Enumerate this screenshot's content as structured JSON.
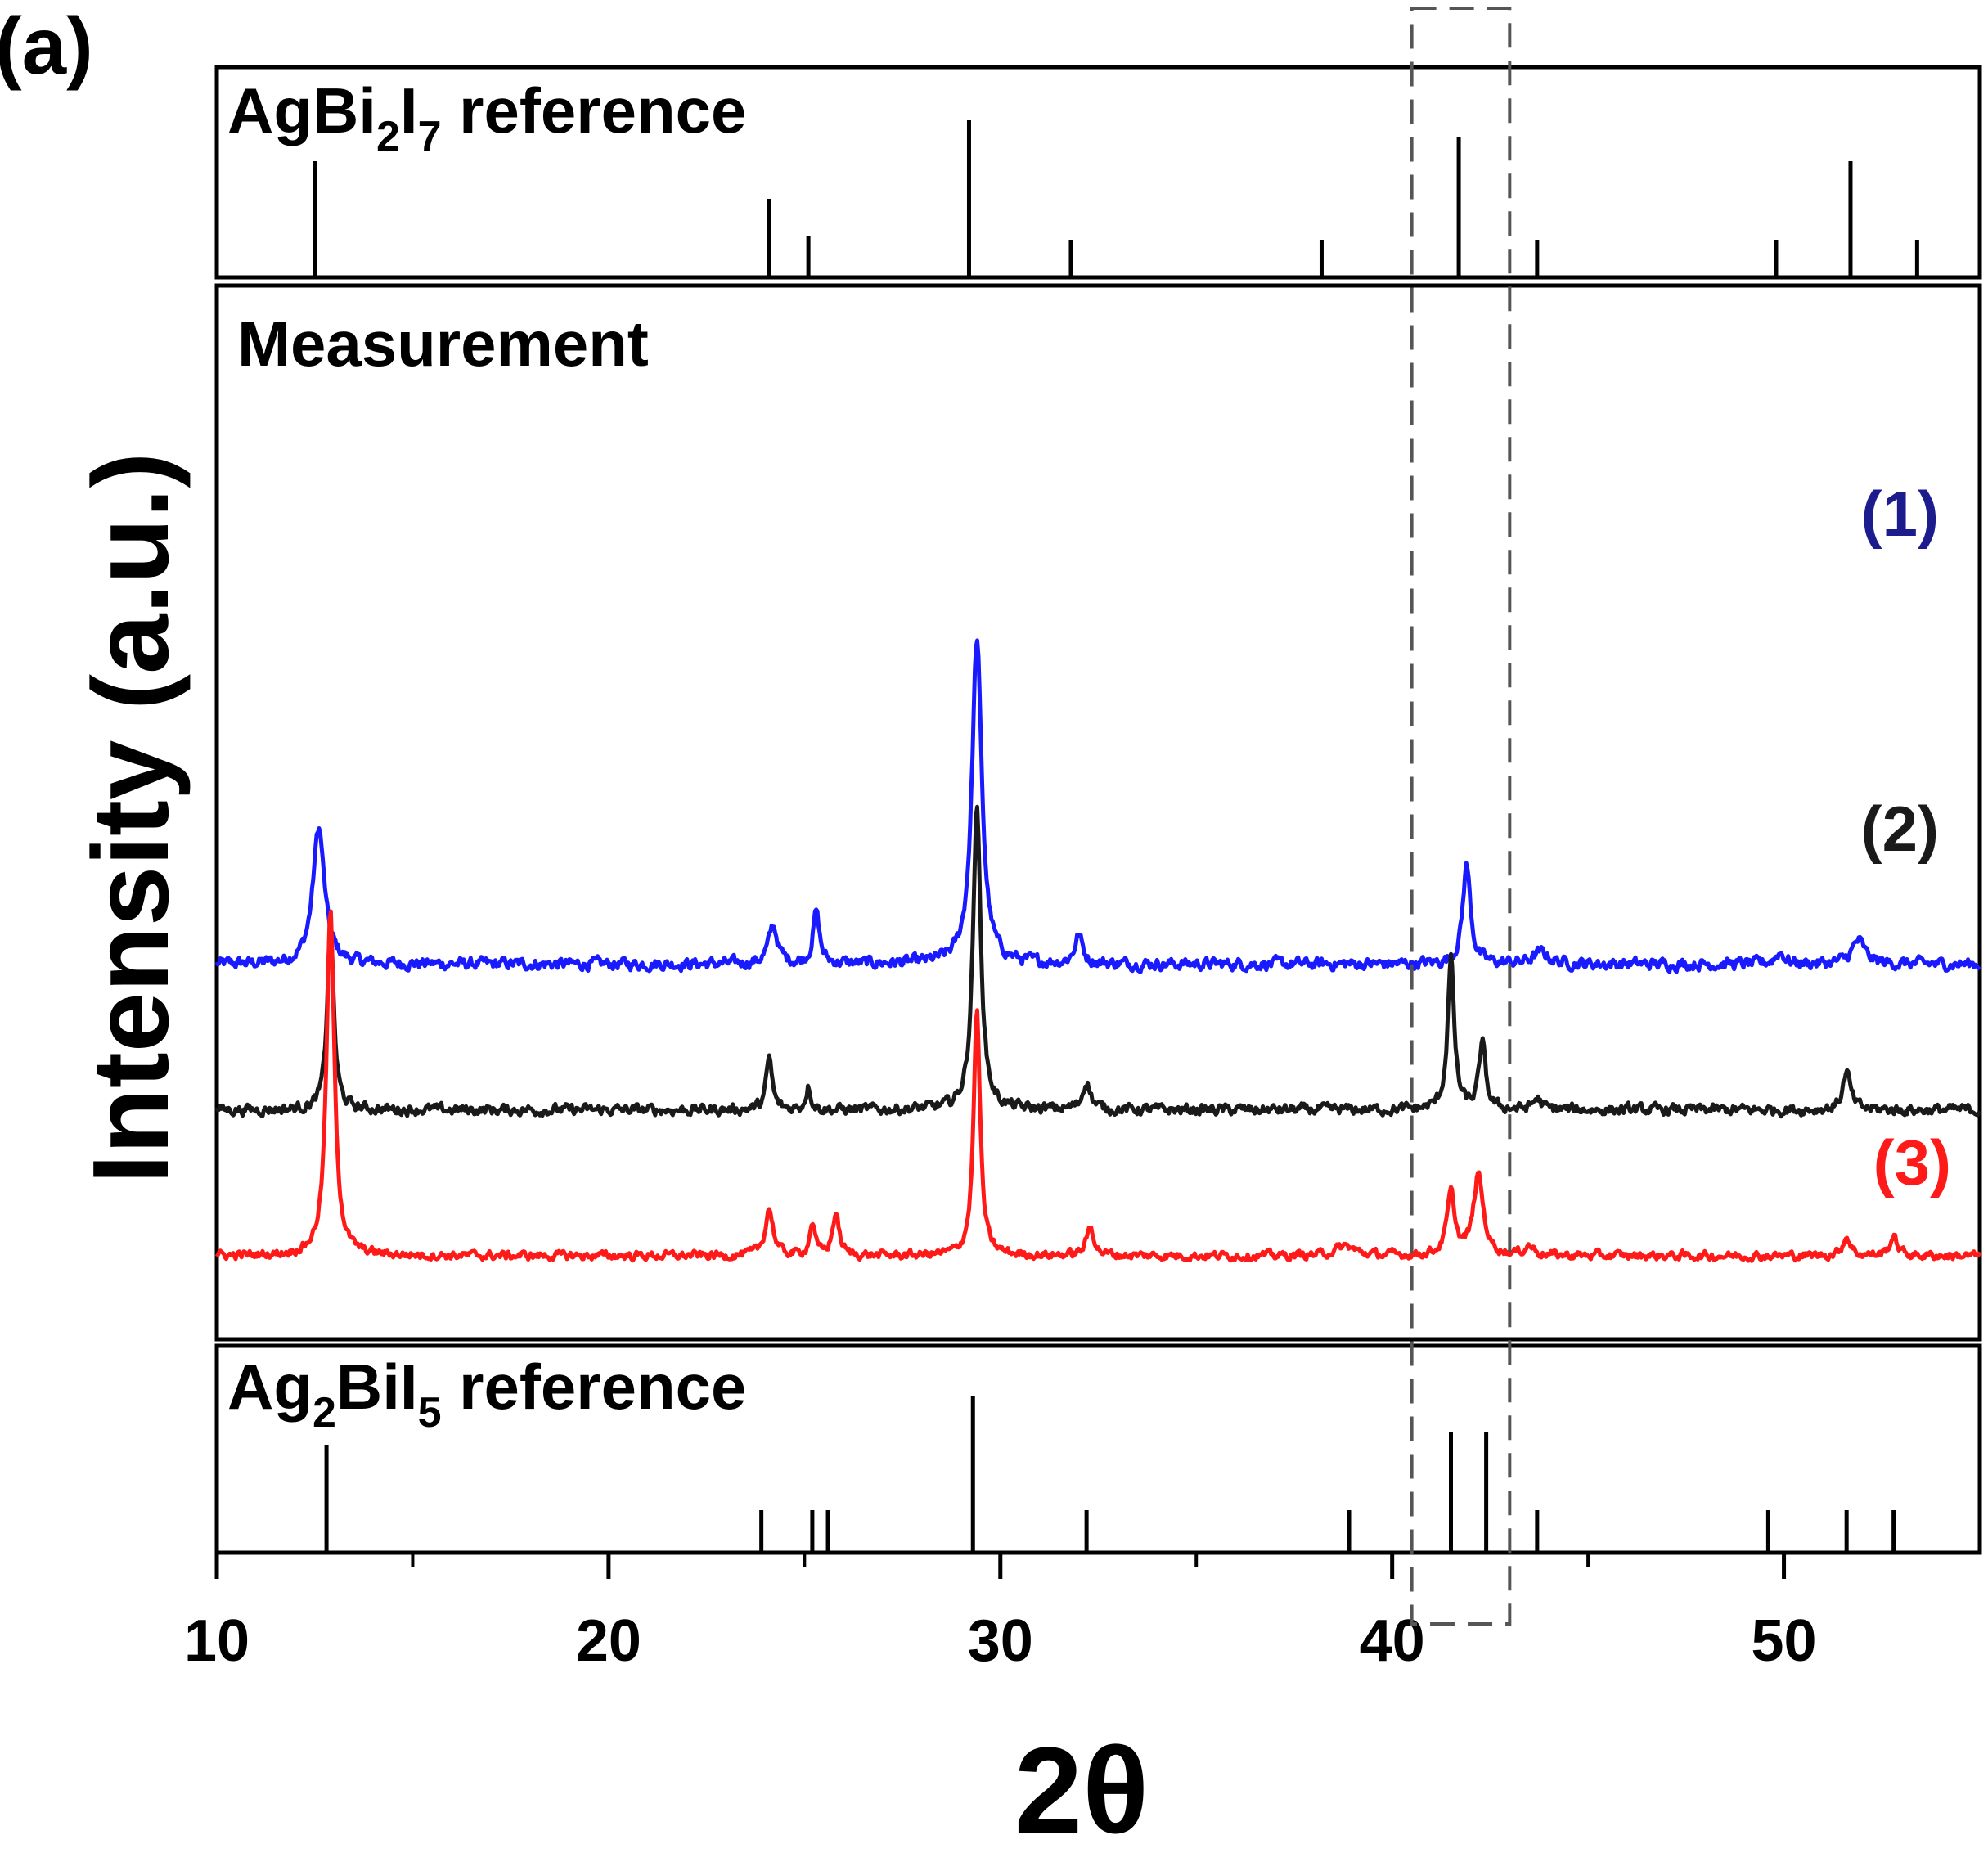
{
  "panel_label": "(a)",
  "chart_data": {
    "type": "line",
    "xlabel": "2θ",
    "ylabel": "Intensity (a.u.)",
    "xlim": [
      10,
      55
    ],
    "xticks": [
      10,
      20,
      30,
      40,
      50
    ],
    "xtick_labels": [
      "10",
      "20",
      "30",
      "40",
      "50"
    ],
    "highlight_region": {
      "x": [
        40.5,
        43.0
      ],
      "style": "dashed box"
    },
    "panels": [
      {
        "id": "top",
        "title_parts": [
          "AgBi",
          "2",
          "I",
          "7",
          " reference"
        ],
        "type": "stick",
        "ylim": [
          0,
          1
        ],
        "sticks": [
          {
            "x": 12.5,
            "y": 0.7
          },
          {
            "x": 24.1,
            "y": 0.47
          },
          {
            "x": 25.1,
            "y": 0.24
          },
          {
            "x": 29.2,
            "y": 0.95
          },
          {
            "x": 31.8,
            "y": 0.22
          },
          {
            "x": 38.2,
            "y": 0.22
          },
          {
            "x": 41.7,
            "y": 0.85
          },
          {
            "x": 43.7,
            "y": 0.22
          },
          {
            "x": 49.8,
            "y": 0.22
          },
          {
            "x": 51.7,
            "y": 0.7
          },
          {
            "x": 53.4,
            "y": 0.22
          }
        ]
      },
      {
        "id": "middle",
        "title": "Measurement",
        "type": "line",
        "series": [
          {
            "name": "(1)",
            "color": "#1a1aff",
            "label_color": "#1c1c8c",
            "offset": 3.1,
            "noise": 0.22,
            "peaks": [
              {
                "x": 12.6,
                "h": 1.45,
                "w": 0.18
              },
              {
                "x": 24.2,
                "h": 0.4,
                "w": 0.14
              },
              {
                "x": 25.3,
                "h": 0.55,
                "w": 0.1
              },
              {
                "x": 29.4,
                "h": 3.45,
                "w": 0.15
              },
              {
                "x": 32.0,
                "h": 0.3,
                "w": 0.12
              },
              {
                "x": 41.9,
                "h": 1.05,
                "w": 0.12
              },
              {
                "x": 43.8,
                "h": 0.12,
                "w": 0.25
              },
              {
                "x": 49.9,
                "h": 0.12,
                "w": 0.15
              },
              {
                "x": 51.9,
                "h": 0.25,
                "w": 0.2
              }
            ]
          },
          {
            "name": "(2)",
            "color": "#1a1a1a",
            "label_color": "#1a1a1a",
            "offset": 1.55,
            "noise": 0.2,
            "peaks": [
              {
                "x": 12.9,
                "h": 1.95,
                "w": 0.1
              },
              {
                "x": 24.1,
                "h": 0.55,
                "w": 0.09
              },
              {
                "x": 25.1,
                "h": 0.25,
                "w": 0.08
              },
              {
                "x": 29.4,
                "h": 3.2,
                "w": 0.12
              },
              {
                "x": 32.2,
                "h": 0.3,
                "w": 0.12
              },
              {
                "x": 41.5,
                "h": 1.6,
                "w": 0.1
              },
              {
                "x": 42.3,
                "h": 0.7,
                "w": 0.1
              },
              {
                "x": 43.7,
                "h": 0.12,
                "w": 0.12
              },
              {
                "x": 51.6,
                "h": 0.4,
                "w": 0.12
              }
            ]
          },
          {
            "name": "(3)",
            "color": "#ff1a1a",
            "label_color": "#ff1a1a",
            "offset": 0.0,
            "noise": 0.16,
            "peaks": [
              {
                "x": 12.9,
                "h": 3.65,
                "w": 0.12
              },
              {
                "x": 24.1,
                "h": 0.5,
                "w": 0.12
              },
              {
                "x": 25.2,
                "h": 0.35,
                "w": 0.08
              },
              {
                "x": 25.8,
                "h": 0.45,
                "w": 0.1
              },
              {
                "x": 29.4,
                "h": 2.6,
                "w": 0.1
              },
              {
                "x": 32.3,
                "h": 0.3,
                "w": 0.12
              },
              {
                "x": 38.8,
                "h": 0.1,
                "w": 0.3
              },
              {
                "x": 41.5,
                "h": 0.65,
                "w": 0.12
              },
              {
                "x": 42.2,
                "h": 0.85,
                "w": 0.15
              },
              {
                "x": 43.5,
                "h": 0.1,
                "w": 0.15
              },
              {
                "x": 51.6,
                "h": 0.2,
                "w": 0.12
              },
              {
                "x": 52.8,
                "h": 0.2,
                "w": 0.12
              }
            ]
          }
        ]
      },
      {
        "id": "bottom",
        "title_parts": [
          "Ag",
          "2",
          "BiI",
          "5",
          " reference"
        ],
        "type": "stick",
        "ylim": [
          0,
          1
        ],
        "sticks": [
          {
            "x": 12.8,
            "y": 0.65
          },
          {
            "x": 23.9,
            "y": 0.25
          },
          {
            "x": 25.2,
            "y": 0.25
          },
          {
            "x": 25.6,
            "y": 0.25
          },
          {
            "x": 29.3,
            "y": 0.95
          },
          {
            "x": 32.2,
            "y": 0.25
          },
          {
            "x": 38.9,
            "y": 0.25
          },
          {
            "x": 41.5,
            "y": 0.73
          },
          {
            "x": 42.4,
            "y": 0.73
          },
          {
            "x": 43.7,
            "y": 0.25
          },
          {
            "x": 49.6,
            "y": 0.25
          },
          {
            "x": 51.6,
            "y": 0.25
          },
          {
            "x": 52.8,
            "y": 0.25
          }
        ]
      }
    ]
  }
}
